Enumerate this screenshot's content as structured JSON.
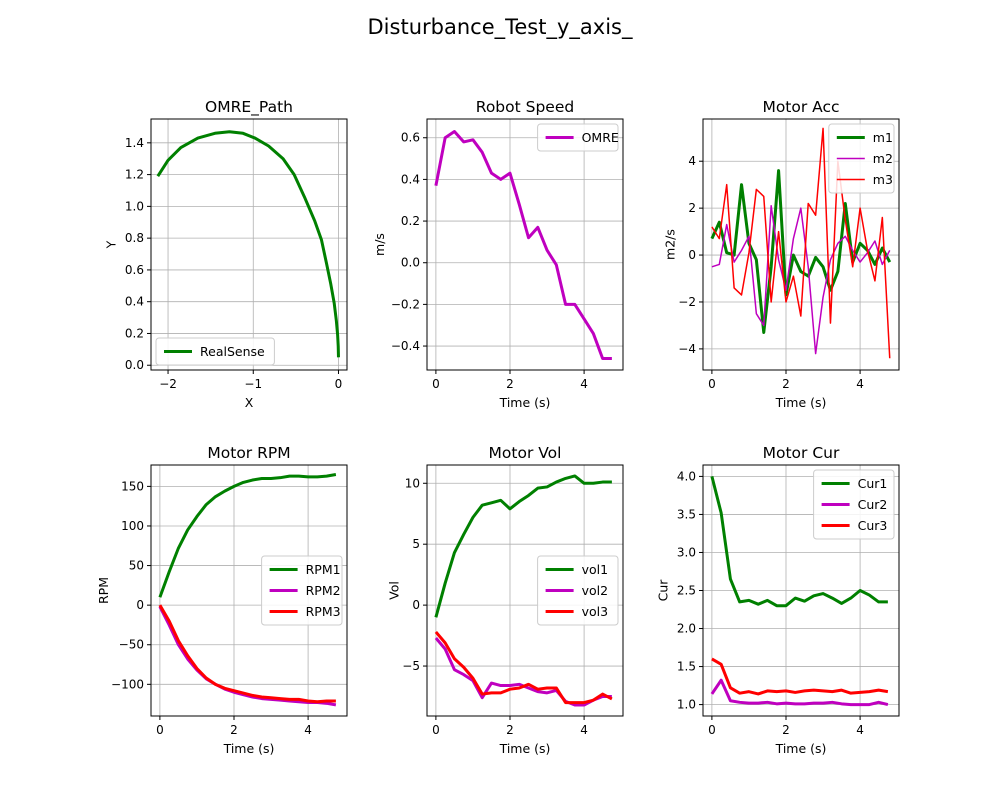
{
  "figure": {
    "suptitle": "Disturbance_Test_y_axis_"
  },
  "chart_data": [
    {
      "type": "line",
      "title": "OMRE_Path",
      "xlabel": "X",
      "ylabel": "Y",
      "xlim": [
        -2.2,
        0.1
      ],
      "ylim": [
        -0.03,
        1.55
      ],
      "xticks": [
        -2,
        -1,
        0
      ],
      "yticks": [
        0.0,
        0.2,
        0.4,
        0.6,
        0.8,
        1.0,
        1.2,
        1.4
      ],
      "tick_decimals": [
        0,
        1
      ],
      "grid": true,
      "legend": "lower-left",
      "series": [
        {
          "name": "RealSense",
          "color": "#008000",
          "width": 3,
          "x": [
            -2.12,
            -2.0,
            -1.85,
            -1.65,
            -1.45,
            -1.28,
            -1.12,
            -0.98,
            -0.82,
            -0.65,
            -0.52,
            -0.4,
            -0.28,
            -0.2,
            -0.14,
            -0.09,
            -0.05,
            -0.025,
            -0.01,
            -0.003,
            0.0
          ],
          "y": [
            1.19,
            1.29,
            1.37,
            1.43,
            1.46,
            1.47,
            1.46,
            1.43,
            1.38,
            1.3,
            1.2,
            1.06,
            0.91,
            0.79,
            0.64,
            0.51,
            0.39,
            0.28,
            0.19,
            0.12,
            0.05
          ]
        }
      ]
    },
    {
      "type": "line",
      "title": "Robot Speed",
      "xlabel": "Time (s)",
      "ylabel": "m/s",
      "xlim": [
        -0.24,
        5.05
      ],
      "ylim": [
        -0.515,
        0.69
      ],
      "xticks": [
        0,
        2,
        4
      ],
      "yticks": [
        -0.4,
        -0.2,
        0.0,
        0.2,
        0.4,
        0.6
      ],
      "tick_decimals": [
        0,
        1
      ],
      "grid": true,
      "legend": "upper-right",
      "series": [
        {
          "name": "OMRE",
          "color": "#bf00bf",
          "width": 3,
          "x": [
            0,
            0.25,
            0.5,
            0.75,
            1.0,
            1.25,
            1.5,
            1.75,
            2.0,
            2.25,
            2.5,
            2.75,
            3.0,
            3.25,
            3.5,
            3.75,
            4.0,
            4.25,
            4.5,
            4.75
          ],
          "y": [
            0.37,
            0.6,
            0.63,
            0.58,
            0.59,
            0.53,
            0.43,
            0.4,
            0.43,
            0.28,
            0.12,
            0.17,
            0.06,
            -0.01,
            -0.2,
            -0.2,
            -0.27,
            -0.34,
            -0.46,
            -0.46
          ]
        }
      ]
    },
    {
      "type": "line",
      "title": "Motor Acc",
      "xlabel": "Time (s)",
      "ylabel": "m2/s",
      "xlim": [
        -0.24,
        5.05
      ],
      "ylim": [
        -4.9,
        5.8
      ],
      "xticks": [
        0,
        2,
        4
      ],
      "yticks": [
        -4,
        -2,
        0,
        2,
        4
      ],
      "tick_decimals": [
        0,
        0
      ],
      "grid": true,
      "legend": "upper-right",
      "series": [
        {
          "name": "m1",
          "color": "#008000",
          "width": 3,
          "x": [
            0,
            0.2,
            0.4,
            0.6,
            0.8,
            1.0,
            1.2,
            1.4,
            1.6,
            1.8,
            2.0,
            2.2,
            2.4,
            2.6,
            2.8,
            3.0,
            3.2,
            3.4,
            3.6,
            3.8,
            4.0,
            4.2,
            4.4,
            4.6,
            4.8
          ],
          "y": [
            0.7,
            1.4,
            0.1,
            0.0,
            3.0,
            0.5,
            -0.2,
            -3.3,
            -0.5,
            3.6,
            -1.7,
            0.0,
            -0.7,
            -0.9,
            -0.1,
            -0.5,
            -1.5,
            -0.7,
            2.2,
            -0.3,
            0.5,
            0.2,
            -0.4,
            0.3,
            -0.3
          ]
        },
        {
          "name": "m2",
          "color": "#bf00bf",
          "width": 1.5,
          "x": [
            0,
            0.2,
            0.4,
            0.6,
            0.8,
            1.0,
            1.2,
            1.4,
            1.6,
            1.8,
            2.0,
            2.2,
            2.4,
            2.6,
            2.8,
            3.0,
            3.2,
            3.4,
            3.6,
            3.8,
            4.0,
            4.2,
            4.4,
            4.6,
            4.8
          ],
          "y": [
            -0.5,
            -0.4,
            1.3,
            -0.3,
            0.2,
            0.8,
            -2.5,
            -3.0,
            2.1,
            -0.2,
            -1.5,
            0.7,
            2.0,
            -0.5,
            -4.2,
            -1.8,
            -0.2,
            0.5,
            0.8,
            0.2,
            -0.3,
            0.1,
            0.6,
            -0.4,
            0.2
          ]
        },
        {
          "name": "m3",
          "color": "#ff0000",
          "width": 1.5,
          "x": [
            0,
            0.2,
            0.4,
            0.6,
            0.8,
            1.0,
            1.2,
            1.4,
            1.6,
            1.8,
            2.0,
            2.2,
            2.4,
            2.6,
            2.8,
            3.0,
            3.2,
            3.4,
            3.6,
            3.8,
            4.0,
            4.2,
            4.4,
            4.6,
            4.8
          ],
          "y": [
            1.2,
            0.7,
            3.0,
            -1.4,
            -1.7,
            0.1,
            2.8,
            2.5,
            -2.0,
            1.0,
            -2.0,
            -0.9,
            -2.6,
            2.2,
            1.7,
            5.4,
            -2.9,
            4.0,
            1.5,
            -0.5,
            2.0,
            0.2,
            -1.1,
            1.6,
            -4.4
          ]
        }
      ]
    },
    {
      "type": "line",
      "title": "Motor RPM",
      "xlabel": "Time (s)",
      "ylabel": "RPM",
      "xlim": [
        -0.24,
        5.05
      ],
      "ylim": [
        -140,
        177
      ],
      "xticks": [
        0,
        2,
        4
      ],
      "yticks": [
        -100,
        -50,
        0,
        50,
        100,
        150
      ],
      "tick_decimals": [
        0,
        0
      ],
      "grid": true,
      "legend": "center-right",
      "series": [
        {
          "name": "RPM1",
          "color": "#008000",
          "width": 3,
          "x": [
            0,
            0.25,
            0.5,
            0.75,
            1.0,
            1.25,
            1.5,
            1.75,
            2.0,
            2.25,
            2.5,
            2.75,
            3.0,
            3.25,
            3.5,
            3.75,
            4.0,
            4.25,
            4.5,
            4.75
          ],
          "y": [
            10,
            42,
            72,
            95,
            112,
            127,
            137,
            144,
            150,
            155,
            158,
            160,
            160,
            161,
            163,
            163,
            162,
            162,
            163,
            165
          ]
        },
        {
          "name": "RPM2",
          "color": "#bf00bf",
          "width": 3,
          "x": [
            0,
            0.25,
            0.5,
            0.75,
            1.0,
            1.25,
            1.5,
            1.75,
            2.0,
            2.25,
            2.5,
            2.75,
            3.0,
            3.25,
            3.5,
            3.75,
            4.0,
            4.25,
            4.5,
            4.75
          ],
          "y": [
            -2,
            -25,
            -50,
            -68,
            -82,
            -93,
            -100,
            -106,
            -110,
            -113,
            -116,
            -118,
            -119,
            -120,
            -121,
            -122,
            -123,
            -123,
            -124,
            -126
          ]
        },
        {
          "name": "RPM3",
          "color": "#ff0000",
          "width": 3,
          "x": [
            0,
            0.25,
            0.5,
            0.75,
            1.0,
            1.25,
            1.5,
            1.75,
            2.0,
            2.25,
            2.5,
            2.75,
            3.0,
            3.25,
            3.5,
            3.75,
            4.0,
            4.25,
            4.5,
            4.75
          ],
          "y": [
            0,
            -20,
            -45,
            -64,
            -80,
            -92,
            -100,
            -105,
            -108,
            -111,
            -114,
            -116,
            -117,
            -118,
            -119,
            -119,
            -121,
            -122,
            -121,
            -121
          ]
        }
      ]
    },
    {
      "type": "line",
      "title": "Motor Vol",
      "xlabel": "Time (s)",
      "ylabel": "Vol",
      "xlim": [
        -0.24,
        5.05
      ],
      "ylim": [
        -9.1,
        11.5
      ],
      "xticks": [
        0,
        2,
        4
      ],
      "yticks": [
        -5,
        0,
        5,
        10
      ],
      "tick_decimals": [
        0,
        0
      ],
      "grid": true,
      "legend": "center-right",
      "series": [
        {
          "name": "vol1",
          "color": "#008000",
          "width": 3,
          "x": [
            0,
            0.25,
            0.5,
            0.75,
            1.0,
            1.25,
            1.5,
            1.75,
            2.0,
            2.25,
            2.5,
            2.75,
            3.0,
            3.25,
            3.5,
            3.75,
            4.0,
            4.25,
            4.5,
            4.75
          ],
          "y": [
            -1.0,
            1.8,
            4.3,
            5.8,
            7.2,
            8.2,
            8.4,
            8.6,
            7.9,
            8.5,
            9.0,
            9.6,
            9.7,
            10.1,
            10.4,
            10.6,
            10.0,
            10.0,
            10.1,
            10.1
          ]
        },
        {
          "name": "vol2",
          "color": "#bf00bf",
          "width": 3,
          "x": [
            0,
            0.25,
            0.5,
            0.75,
            1.0,
            1.25,
            1.5,
            1.75,
            2.0,
            2.25,
            2.5,
            2.75,
            3.0,
            3.25,
            3.5,
            3.75,
            4.0,
            4.25,
            4.5,
            4.75
          ],
          "y": [
            -2.7,
            -3.6,
            -5.3,
            -5.7,
            -6.2,
            -7.6,
            -6.4,
            -6.6,
            -6.6,
            -6.5,
            -6.8,
            -7.1,
            -7.2,
            -7.0,
            -7.9,
            -8.2,
            -8.2,
            -7.8,
            -7.5,
            -7.5
          ]
        },
        {
          "name": "vol3",
          "color": "#ff0000",
          "width": 3,
          "x": [
            0,
            0.25,
            0.5,
            0.75,
            1.0,
            1.25,
            1.5,
            1.75,
            2.0,
            2.25,
            2.5,
            2.75,
            3.0,
            3.25,
            3.5,
            3.75,
            4.0,
            4.25,
            4.5,
            4.75
          ],
          "y": [
            -2.2,
            -3.1,
            -4.4,
            -5.1,
            -6.0,
            -7.3,
            -7.2,
            -7.2,
            -6.9,
            -6.8,
            -6.5,
            -6.9,
            -6.8,
            -6.8,
            -8.0,
            -8.0,
            -8.0,
            -7.8,
            -7.3,
            -7.7
          ]
        }
      ]
    },
    {
      "type": "line",
      "title": "Motor Cur",
      "xlabel": "Time (s)",
      "ylabel": "Cur",
      "xlim": [
        -0.24,
        5.05
      ],
      "ylim": [
        0.85,
        4.15
      ],
      "xticks": [
        0,
        2,
        4
      ],
      "yticks": [
        1.0,
        1.5,
        2.0,
        2.5,
        3.0,
        3.5,
        4.0
      ],
      "tick_decimals": [
        0,
        1
      ],
      "grid": true,
      "legend": "upper-right",
      "series": [
        {
          "name": "Cur1",
          "color": "#008000",
          "width": 3,
          "x": [
            0,
            0.25,
            0.5,
            0.75,
            1.0,
            1.25,
            1.5,
            1.75,
            2.0,
            2.25,
            2.5,
            2.75,
            3.0,
            3.25,
            3.5,
            3.75,
            4.0,
            4.25,
            4.5,
            4.75
          ],
          "y": [
            4.0,
            3.52,
            2.65,
            2.35,
            2.37,
            2.32,
            2.37,
            2.3,
            2.3,
            2.4,
            2.36,
            2.43,
            2.46,
            2.4,
            2.33,
            2.4,
            2.5,
            2.44,
            2.35,
            2.35
          ]
        },
        {
          "name": "Cur2",
          "color": "#bf00bf",
          "width": 3,
          "x": [
            0,
            0.25,
            0.5,
            0.75,
            1.0,
            1.25,
            1.5,
            1.75,
            2.0,
            2.25,
            2.5,
            2.75,
            3.0,
            3.25,
            3.5,
            3.75,
            4.0,
            4.25,
            4.5,
            4.75
          ],
          "y": [
            1.14,
            1.32,
            1.05,
            1.03,
            1.02,
            1.02,
            1.03,
            1.01,
            1.02,
            1.01,
            1.01,
            1.02,
            1.02,
            1.03,
            1.01,
            1.0,
            1.0,
            1.0,
            1.03,
            1.0
          ]
        },
        {
          "name": "Cur3",
          "color": "#ff0000",
          "width": 3,
          "x": [
            0,
            0.25,
            0.5,
            0.75,
            1.0,
            1.25,
            1.5,
            1.75,
            2.0,
            2.25,
            2.5,
            2.75,
            3.0,
            3.25,
            3.5,
            3.75,
            4.0,
            4.25,
            4.5,
            4.75
          ],
          "y": [
            1.6,
            1.53,
            1.22,
            1.15,
            1.17,
            1.14,
            1.18,
            1.17,
            1.18,
            1.16,
            1.18,
            1.19,
            1.18,
            1.17,
            1.19,
            1.15,
            1.16,
            1.17,
            1.19,
            1.17
          ]
        }
      ]
    }
  ]
}
